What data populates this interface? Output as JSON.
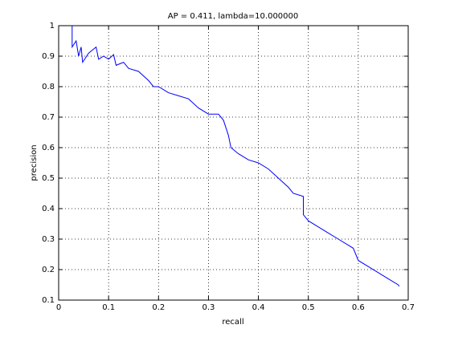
{
  "chart_data": {
    "type": "line",
    "title": "AP = 0.411, lambda=10.000000",
    "xlabel": "recall",
    "ylabel": "precision",
    "x": [
      0.027,
      0.027,
      0.035,
      0.04,
      0.045,
      0.048,
      0.06,
      0.075,
      0.08,
      0.09,
      0.1,
      0.11,
      0.115,
      0.13,
      0.14,
      0.16,
      0.18,
      0.19,
      0.2,
      0.22,
      0.24,
      0.26,
      0.28,
      0.3,
      0.32,
      0.33,
      0.34,
      0.345,
      0.36,
      0.38,
      0.4,
      0.42,
      0.44,
      0.46,
      0.47,
      0.49,
      0.49,
      0.5,
      0.52,
      0.54,
      0.56,
      0.58,
      0.59,
      0.6,
      0.62,
      0.64,
      0.66,
      0.68,
      0.682
    ],
    "series": [
      {
        "name": "precision",
        "color": "#0000ff",
        "values": [
          1.0,
          0.93,
          0.95,
          0.9,
          0.93,
          0.88,
          0.91,
          0.93,
          0.89,
          0.9,
          0.89,
          0.905,
          0.87,
          0.88,
          0.86,
          0.85,
          0.82,
          0.8,
          0.8,
          0.78,
          0.77,
          0.76,
          0.73,
          0.71,
          0.71,
          0.69,
          0.64,
          0.6,
          0.58,
          0.56,
          0.55,
          0.53,
          0.5,
          0.47,
          0.45,
          0.44,
          0.38,
          0.36,
          0.34,
          0.32,
          0.3,
          0.28,
          0.27,
          0.23,
          0.21,
          0.19,
          0.17,
          0.15,
          0.145
        ]
      }
    ],
    "xlim": [
      0,
      0.7
    ],
    "ylim": [
      0.1,
      1
    ],
    "xticks": [
      0,
      0.1,
      0.2,
      0.3,
      0.4,
      0.5,
      0.6,
      0.7
    ],
    "yticks": [
      0.1,
      0.2,
      0.3,
      0.4,
      0.5,
      0.6,
      0.7,
      0.8,
      0.9,
      1
    ],
    "grid": true
  }
}
